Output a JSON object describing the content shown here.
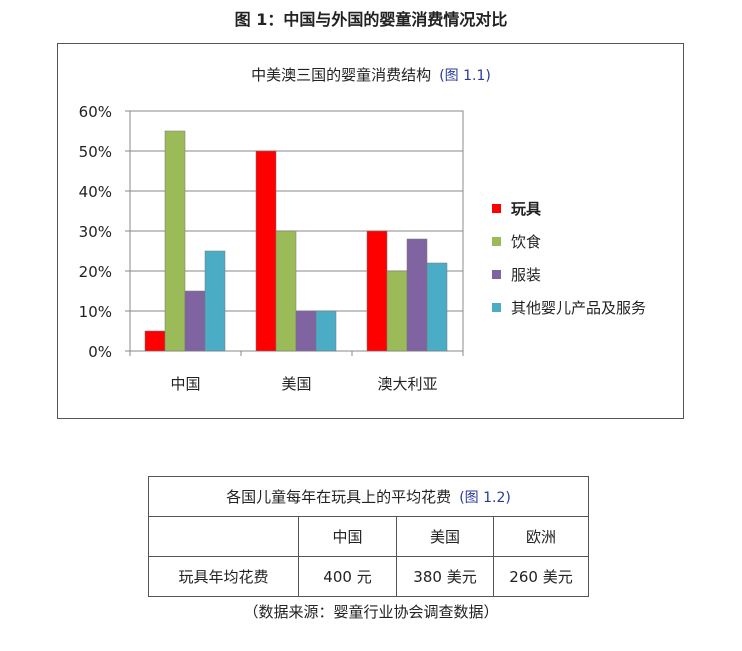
{
  "figure_title": "图 1：中国与外国的婴童消费情况对比",
  "chart_data": {
    "type": "bar",
    "title": "中美澳三国的婴童消费结构",
    "title_ref": "(图 1.1)",
    "categories": [
      "中国",
      "美国",
      "澳大利亚"
    ],
    "series": [
      {
        "name": "玩具",
        "color": "#ff0000",
        "values": [
          5,
          50,
          30
        ]
      },
      {
        "name": "饮食",
        "color": "#9bbb59",
        "values": [
          55,
          30,
          20
        ]
      },
      {
        "name": "服装",
        "color": "#8064a2",
        "values": [
          15,
          10,
          28
        ]
      },
      {
        "name": "其他婴儿产品及服务",
        "color": "#4bacc6",
        "values": [
          25,
          10,
          22
        ]
      }
    ],
    "ylim": [
      0,
      60
    ],
    "yticks": [
      "0%",
      "10%",
      "20%",
      "30%",
      "40%",
      "50%",
      "60%"
    ],
    "grid": true,
    "legend": "right"
  },
  "table": {
    "title": "各国儿童每年在玩具上的平均花费",
    "title_ref": "(图 1.2)",
    "headers": [
      "",
      "中国",
      "美国",
      "欧洲"
    ],
    "row": [
      "玩具年均花费",
      "400 元",
      "380 美元",
      "260 美元"
    ]
  },
  "source": "（数据来源：婴童行业协会调查数据）"
}
